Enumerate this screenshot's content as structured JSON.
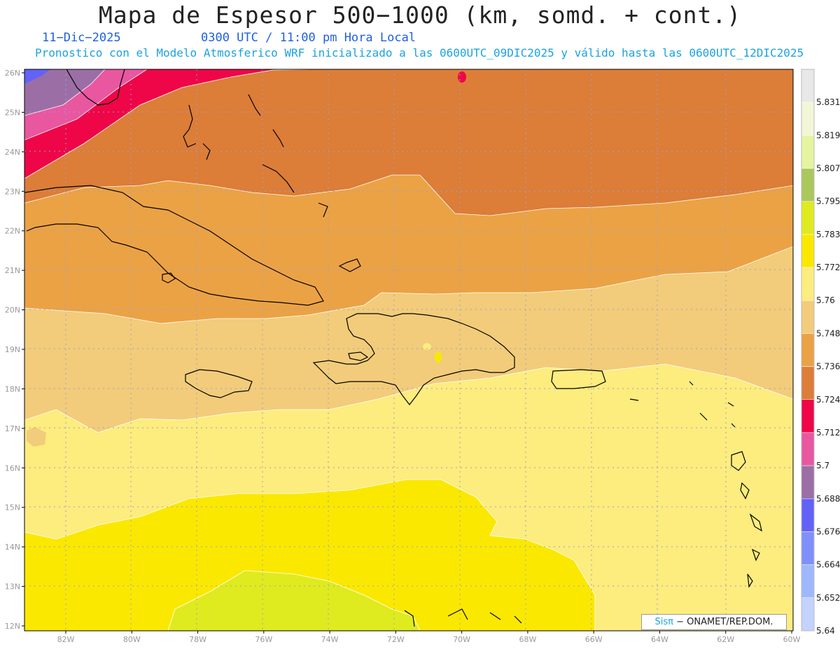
{
  "title": "Mapa de Espesor 500−1000 (km, somd. + cont.)",
  "subtitle": {
    "date": "11−Dic−2025",
    "time": "0300 UTC / 11:00 pm Hora Local",
    "model": "Pronostico con el Modelo Atmosferico WRF inicializado a las 0600UTC_09DIC2025 y válido hasta las  0600UTC_12DIC2025"
  },
  "axes": {
    "lat_labels": [
      "26N",
      "25N",
      "24N",
      "23N",
      "22N",
      "21N",
      "20N",
      "19N",
      "18N",
      "17N",
      "16N",
      "15N",
      "14N",
      "13N",
      "12N"
    ],
    "lon_labels": [
      "82W",
      "80W",
      "78W",
      "76W",
      "74W",
      "72W",
      "70W",
      "68W",
      "66W",
      "64W",
      "62W",
      "60W"
    ]
  },
  "colorbar": {
    "labels": [
      "5.831",
      "5.819",
      "5.807",
      "5.795",
      "5.783",
      "5.772",
      "5.76",
      "5.748",
      "5.736",
      "5.724",
      "5.712",
      "5.7",
      "5.688",
      "5.676",
      "5.664",
      "5.652",
      "5.64"
    ],
    "colors": [
      "#e8e8e8",
      "#f2f6d6",
      "#e4f4a0",
      "#aac85c",
      "#dfeb1e",
      "#fbe800",
      "#fdec7e",
      "#f2cc7a",
      "#eba245",
      "#dc7d38",
      "#ee0648",
      "#e857a0",
      "#9b6fa6",
      "#6262f7",
      "#7f90fb",
      "#9fb8fd",
      "#c3d3fd"
    ]
  },
  "credit": {
    "brand": "Sisπ",
    "text": "− ONAMET/REP.DOM."
  }
}
